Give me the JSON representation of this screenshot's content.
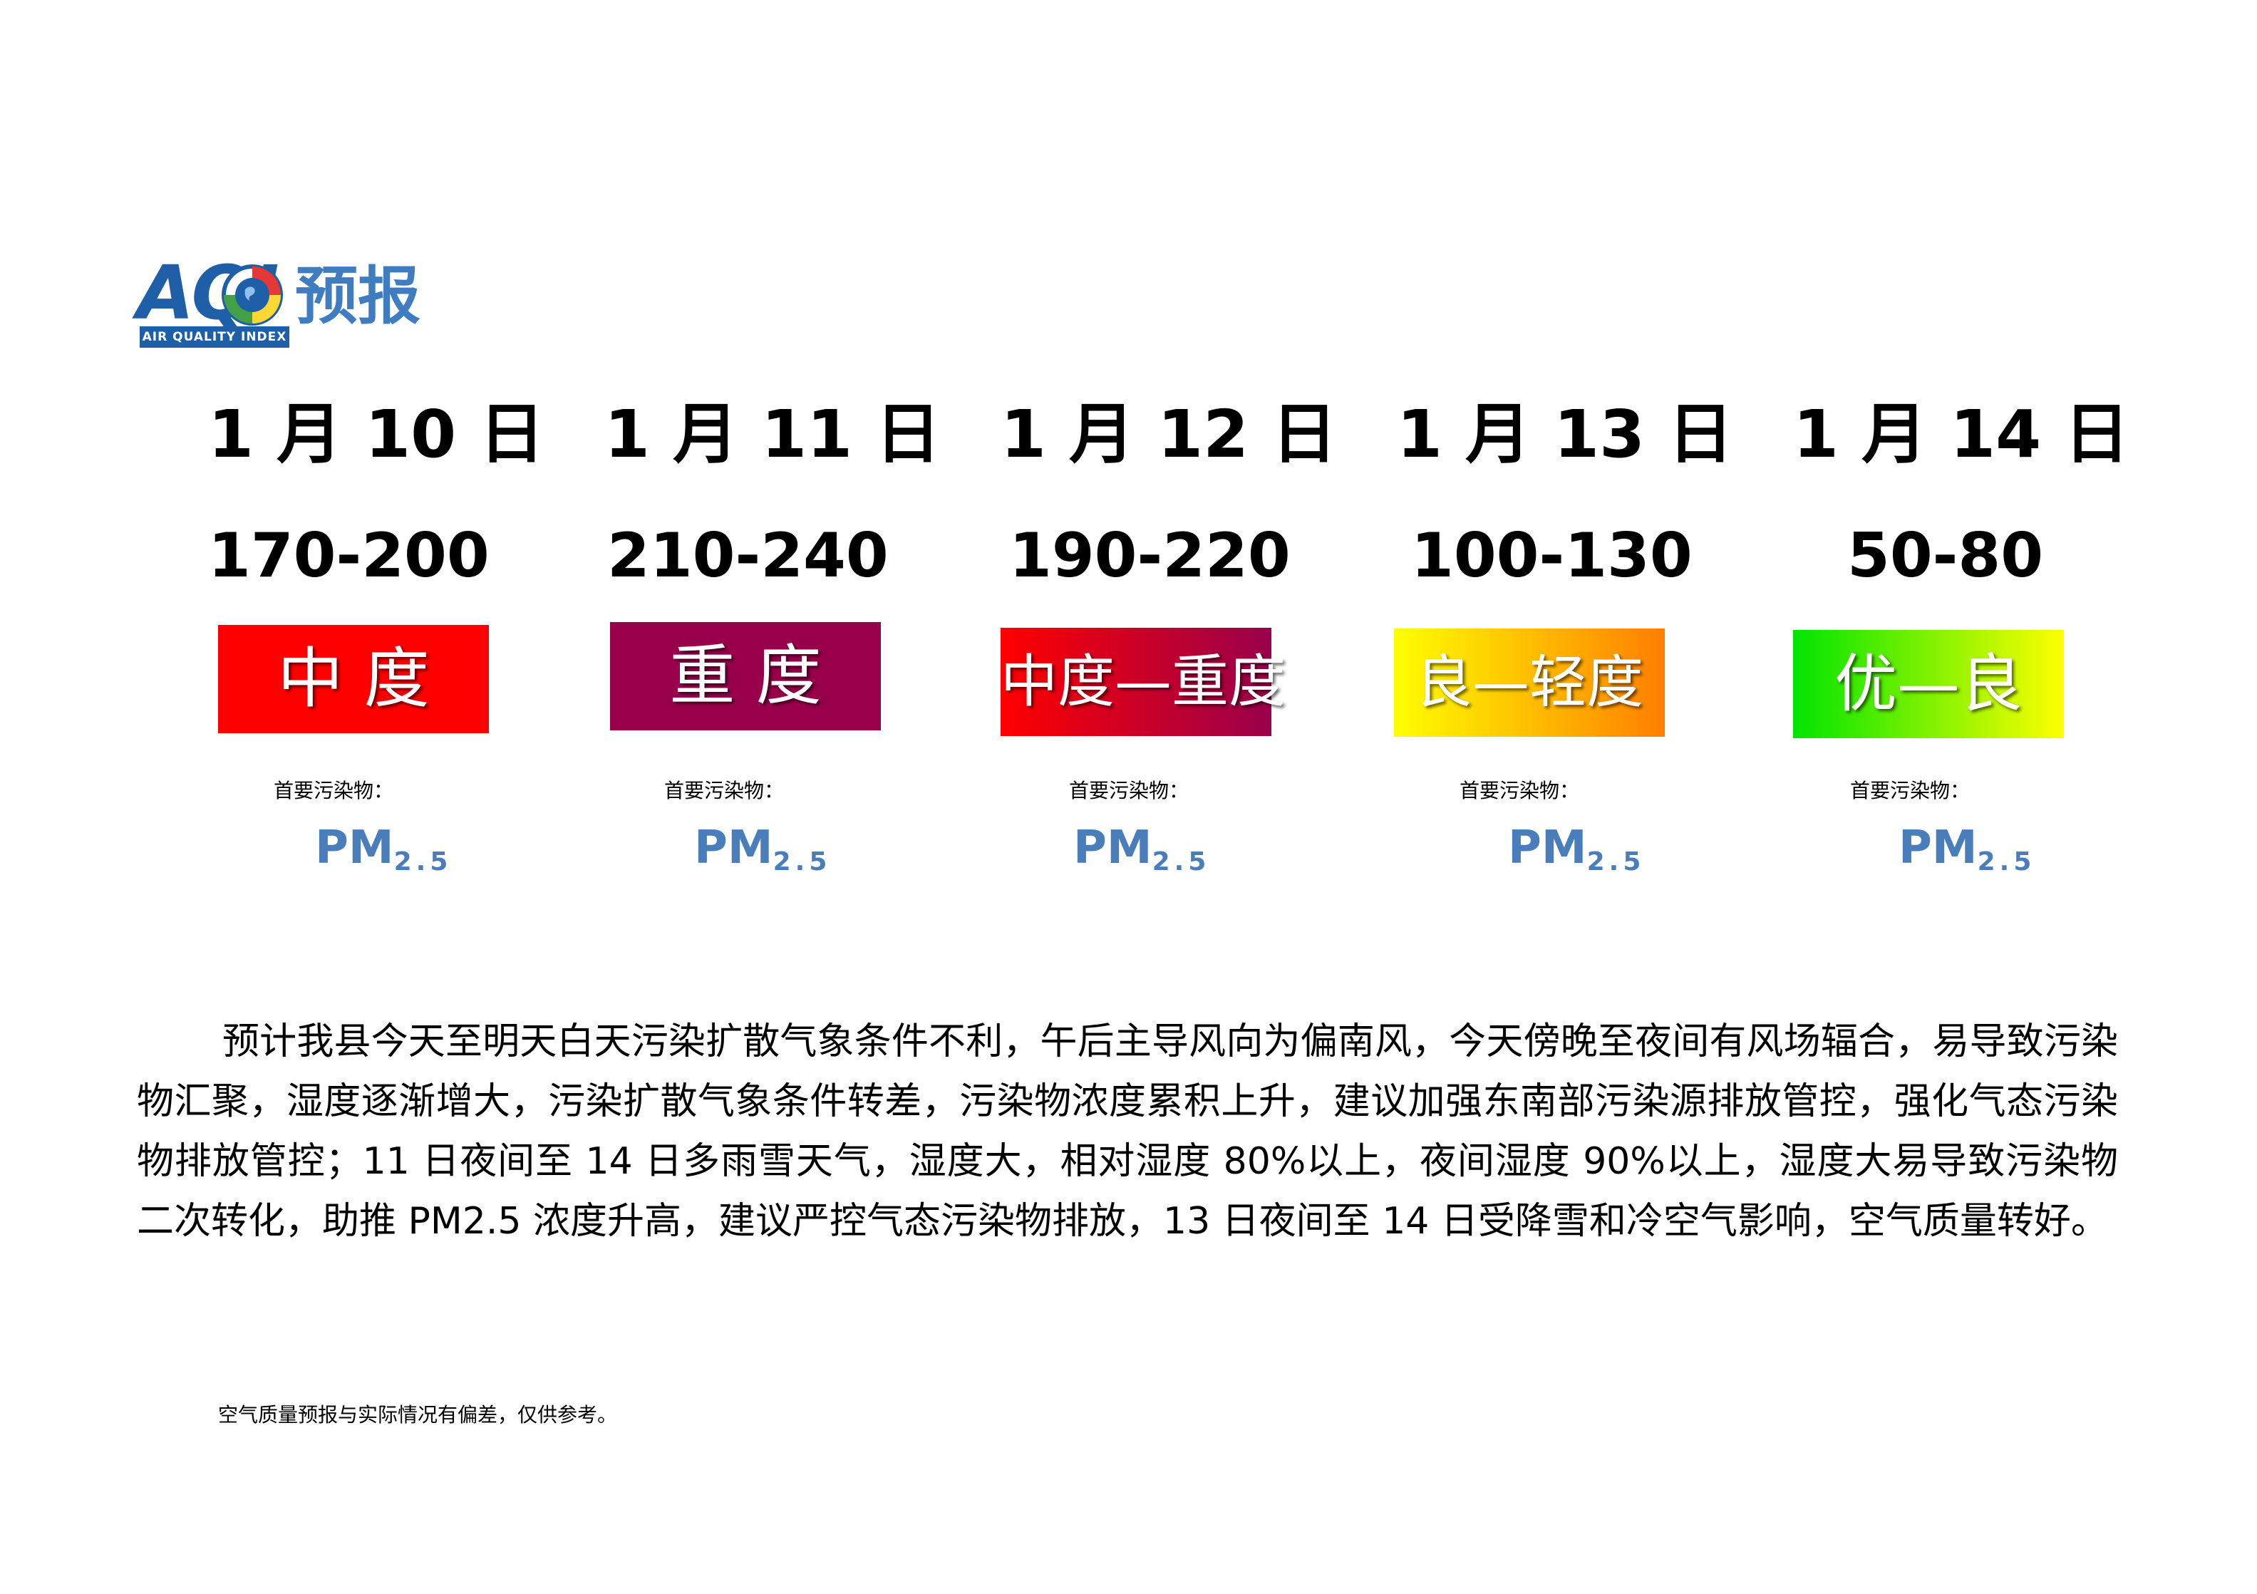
{
  "logo": {
    "acronym": "AQI",
    "subtitle": "AIR QUALITY INDEX",
    "title_cn": "预报"
  },
  "forecast": [
    {
      "date": "1 月 10 日",
      "range": "170-200",
      "level": "中 度",
      "pollutant_label": "首要污染物：",
      "pollutant": "PM",
      "pollutant_sub": "2.5",
      "colors": [
        "#ff0000",
        "#ff0000"
      ]
    },
    {
      "date": "1 月 11 日",
      "range": "210-240",
      "level": "重 度",
      "pollutant_label": "首要污染物：",
      "pollutant": "PM",
      "pollutant_sub": "2.5",
      "colors": [
        "#99004c",
        "#99004c"
      ]
    },
    {
      "date": "1 月 12 日",
      "range": "190-220",
      "level": "中度—重度",
      "pollutant_label": "首要污染物：",
      "pollutant": "PM",
      "pollutant_sub": "2.5",
      "colors": [
        "#ff0000",
        "#99004c"
      ]
    },
    {
      "date": "1 月 13 日",
      "range": "100-130",
      "level": "良—轻度",
      "pollutant_label": "首要污染物：",
      "pollutant": "PM",
      "pollutant_sub": "2.5",
      "colors": [
        "#ffff00",
        "#ff7e00"
      ]
    },
    {
      "date": "1 月 14 日",
      "range": "50-80",
      "level": "优—良",
      "pollutant_label": "首要污染物：",
      "pollutant": "PM",
      "pollutant_sub": "2.5",
      "colors": [
        "#00e400",
        "#ffff00"
      ]
    }
  ],
  "description": "预计我县今天至明天白天污染扩散气象条件不利，午后主导风向为偏南风，今天傍晚至夜间有风场辐合，易导致污染物汇聚，湿度逐渐增大，污染扩散气象条件转差，污染物浓度累积上升，建议加强东南部污染源排放管控，强化气态污染物排放管控；11 日夜间至 14 日多雨雪天气，湿度大，相对湿度 80%以上，夜间湿度 90%以上，湿度大易导致污染物二次转化，助推 PM2.5 浓度升高，建议严控气态污染物排放，13 日夜间至 14 日受降雪和冷空气影响，空气质量转好。",
  "disclaimer": "空气质量预报与实际情况有偏差，仅供参考。"
}
